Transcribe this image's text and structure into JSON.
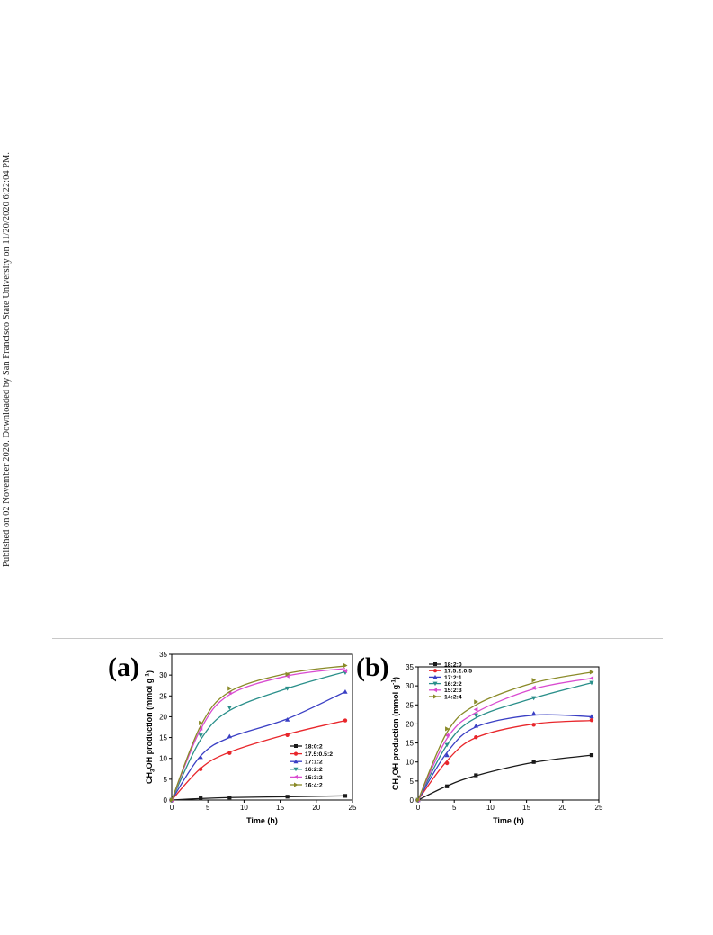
{
  "page": {
    "side_note": "Published on 02 November 2020. Downloaded by San Francisco State University on 11/20/2020 6:22:04 PM."
  },
  "chart_data": [
    {
      "panel": "(a)",
      "type": "line",
      "xlabel": "Time (h)",
      "ylabel_main": "CH",
      "ylabel_sub": "3",
      "ylabel_rest": "OH production (mmol g",
      "ylabel_sup": "-1",
      "ylabel_end": ")",
      "xlim": [
        0,
        25
      ],
      "ylim": [
        0,
        35
      ],
      "xticks": [
        0,
        5,
        10,
        15,
        20,
        25
      ],
      "yticks": [
        0,
        5,
        10,
        15,
        20,
        25,
        30,
        35
      ],
      "legend_position": "bottom-right",
      "x": [
        0,
        4,
        8,
        16,
        24
      ],
      "series": [
        {
          "name": "18:0:2",
          "color": "#1a1a1a",
          "marker": "square",
          "values": [
            0,
            0.4,
            0.6,
            0.8,
            1.0
          ],
          "curve": [
            [
              0,
              0
            ],
            [
              4,
              0.35
            ],
            [
              8,
              0.6
            ],
            [
              16,
              0.8
            ],
            [
              24,
              1.0
            ]
          ]
        },
        {
          "name": "17.5:0.5:2",
          "color": "#e8262b",
          "marker": "circle",
          "values": [
            0,
            7.4,
            11.3,
            15.6,
            19.1
          ],
          "curve": [
            [
              0,
              0
            ],
            [
              4,
              7.6
            ],
            [
              8,
              11.5
            ],
            [
              16,
              15.8
            ],
            [
              24,
              19.1
            ]
          ]
        },
        {
          "name": "17:1:2",
          "color": "#3a3fc4",
          "marker": "triangle-up",
          "values": [
            0,
            10.3,
            15.3,
            19.3,
            26.0
          ],
          "curve": [
            [
              0,
              0
            ],
            [
              4,
              10.6
            ],
            [
              8,
              15.0
            ],
            [
              16,
              19.5
            ],
            [
              24,
              26.0
            ]
          ]
        },
        {
          "name": "16:2:2",
          "color": "#2a8f8a",
          "marker": "triangle-down",
          "values": [
            0,
            15.5,
            22.2,
            26.8,
            30.6
          ],
          "curve": [
            [
              0,
              0
            ],
            [
              4,
              14.5
            ],
            [
              8,
              21.5
            ],
            [
              16,
              26.8
            ],
            [
              24,
              30.8
            ]
          ]
        },
        {
          "name": "15:3:2",
          "color": "#d94bd0",
          "marker": "triangle-left",
          "values": [
            0,
            17.2,
            25.8,
            29.8,
            31.0
          ],
          "curve": [
            [
              0,
              0
            ],
            [
              4,
              17.0
            ],
            [
              8,
              25.3
            ],
            [
              16,
              29.8
            ],
            [
              24,
              31.6
            ]
          ]
        },
        {
          "name": "16:4:2",
          "color": "#8a8a28",
          "marker": "triangle-right",
          "values": [
            0,
            18.5,
            26.8,
            30.2,
            32.3
          ],
          "curve": [
            [
              0,
              0
            ],
            [
              4,
              17.8
            ],
            [
              8,
              26.0
            ],
            [
              16,
              30.4
            ],
            [
              24,
              32.2
            ]
          ]
        }
      ]
    },
    {
      "panel": "(b)",
      "type": "line",
      "xlabel": "Time (h)",
      "ylabel_main": "CH",
      "ylabel_sub": "3",
      "ylabel_rest": "OH production (mmol g",
      "ylabel_sup": "-1",
      "ylabel_end": ")",
      "xlim": [
        0,
        25
      ],
      "ylim": [
        0,
        35
      ],
      "xticks": [
        0,
        5,
        10,
        15,
        20,
        25
      ],
      "yticks": [
        0,
        5,
        10,
        15,
        20,
        25,
        30,
        35
      ],
      "legend_position": "top-left",
      "x": [
        0,
        4,
        8,
        16,
        24
      ],
      "series": [
        {
          "name": "18:2:0",
          "color": "#1a1a1a",
          "marker": "square",
          "values": [
            0,
            3.6,
            6.5,
            10.0,
            11.8
          ],
          "curve": [
            [
              0,
              0
            ],
            [
              4,
              3.7
            ],
            [
              8,
              6.4
            ],
            [
              16,
              9.9
            ],
            [
              24,
              11.8
            ]
          ]
        },
        {
          "name": "17.5:2:0.5",
          "color": "#e8262b",
          "marker": "circle",
          "values": [
            0,
            9.7,
            16.5,
            19.8,
            21.0
          ],
          "curve": [
            [
              0,
              0
            ],
            [
              4,
              10.3
            ],
            [
              8,
              16.4
            ],
            [
              16,
              20.0
            ],
            [
              24,
              20.9
            ]
          ]
        },
        {
          "name": "17:2:1",
          "color": "#3a3fc4",
          "marker": "triangle-up",
          "values": [
            0,
            11.8,
            19.5,
            22.8,
            22.0
          ],
          "curve": [
            [
              0,
              0
            ],
            [
              4,
              12.5
            ],
            [
              8,
              19.2
            ],
            [
              16,
              22.3
            ],
            [
              24,
              21.9
            ]
          ]
        },
        {
          "name": "16:2:2",
          "color": "#2a8f8a",
          "marker": "triangle-down",
          "values": [
            0,
            14.5,
            22.3,
            26.8,
            30.8
          ],
          "curve": [
            [
              0,
              0
            ],
            [
              4,
              14.5
            ],
            [
              8,
              21.6
            ],
            [
              16,
              26.8
            ],
            [
              24,
              30.8
            ]
          ]
        },
        {
          "name": "15:2:3",
          "color": "#d94bd0",
          "marker": "triangle-left",
          "values": [
            0,
            17.0,
            23.8,
            29.5,
            32.0
          ],
          "curve": [
            [
              0,
              0
            ],
            [
              4,
              16.2
            ],
            [
              8,
              23.0
            ],
            [
              16,
              29.2
            ],
            [
              24,
              32.0
            ]
          ]
        },
        {
          "name": "14:2:4",
          "color": "#8a8a28",
          "marker": "triangle-right",
          "values": [
            0,
            18.7,
            25.8,
            31.5,
            33.6
          ],
          "curve": [
            [
              0,
              0
            ],
            [
              4,
              17.8
            ],
            [
              8,
              25.0
            ],
            [
              16,
              30.8
            ],
            [
              24,
              33.6
            ]
          ]
        }
      ]
    }
  ]
}
